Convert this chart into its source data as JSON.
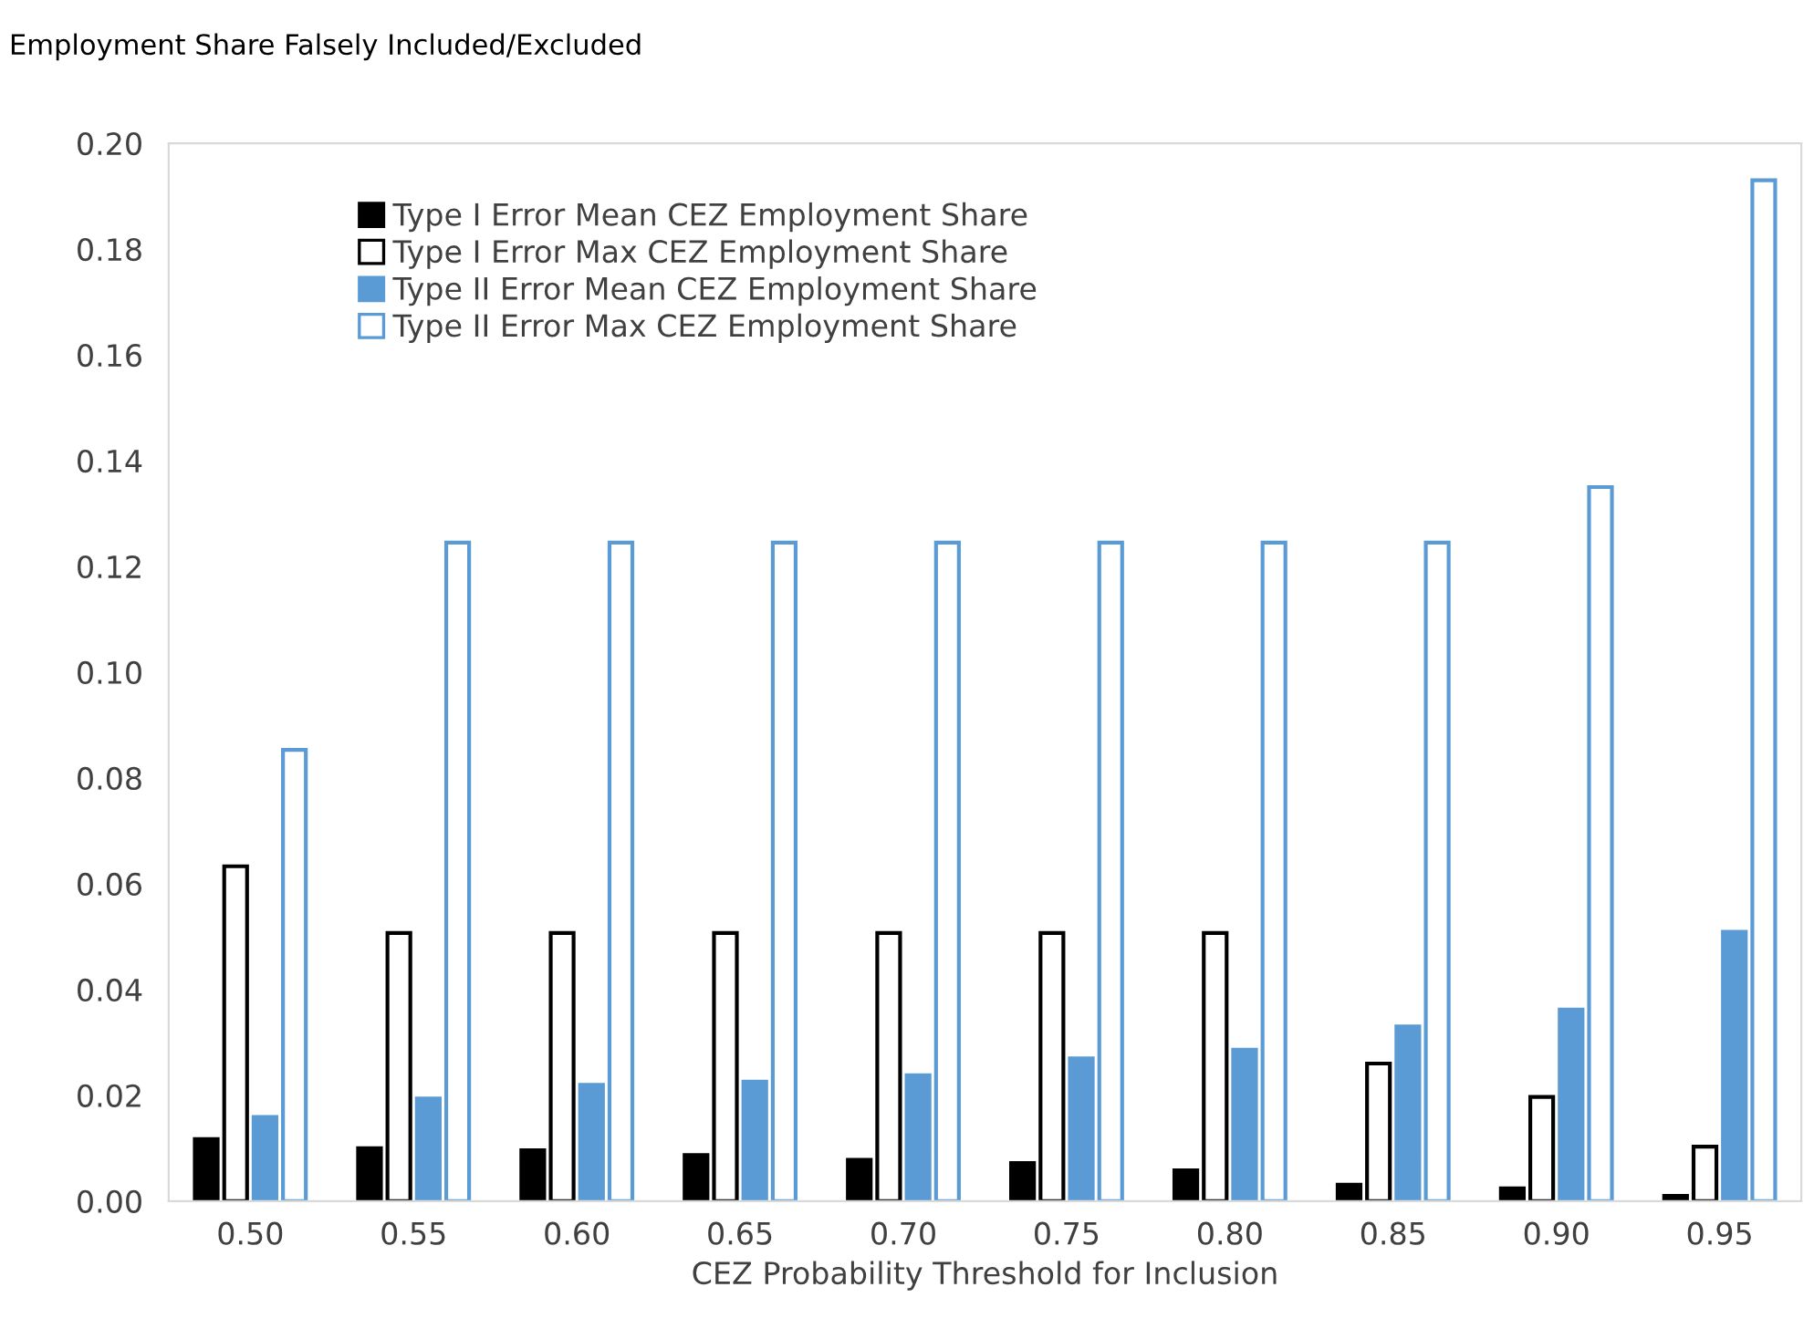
{
  "chart_data": {
    "type": "bar",
    "ylabel": "Employment Share Falsely Included/Excluded",
    "xlabel": "CEZ Probability Threshold for Inclusion",
    "categories": [
      "0.50",
      "0.55",
      "0.60",
      "0.65",
      "0.70",
      "0.75",
      "0.80",
      "0.85",
      "0.90",
      "0.95"
    ],
    "series": [
      {
        "name": "Type I Error Mean CEZ Employment Share",
        "color": "#000000",
        "values": [
          0.0117,
          0.01,
          0.0096,
          0.0087,
          0.0078,
          0.0072,
          0.0058,
          0.0031,
          0.0024,
          0.001
        ]
      },
      {
        "name": "Type I Error Max CEZ Employment Share",
        "color": "#000000",
        "values": [
          0.0633,
          0.0507,
          0.0507,
          0.0507,
          0.0507,
          0.0507,
          0.0507,
          0.026,
          0.0197,
          0.0103
        ]
      },
      {
        "name": "Type II Error Mean CEZ Employment Share",
        "color": "#5b9bd5",
        "values": [
          0.0159,
          0.0194,
          0.022,
          0.0226,
          0.0238,
          0.027,
          0.0286,
          0.033,
          0.0362,
          0.0509
        ]
      },
      {
        "name": "Type II Error Max CEZ Employment Share",
        "color": "#5b9bd5",
        "values": [
          0.0853,
          0.1245,
          0.1245,
          0.1245,
          0.1245,
          0.1245,
          0.1245,
          0.1245,
          0.135,
          0.193
        ]
      }
    ],
    "ylim": [
      0,
      0.2
    ],
    "yticks": [
      {
        "value": 0,
        "label": "0.00"
      },
      {
        "value": 0.02,
        "label": "0.02"
      },
      {
        "value": 0.04,
        "label": "0.04"
      },
      {
        "value": 0.06,
        "label": "0.06"
      },
      {
        "value": 0.08,
        "label": "0.08"
      },
      {
        "value": 0.1,
        "label": "0.10"
      },
      {
        "value": 0.12,
        "label": "0.12"
      },
      {
        "value": 0.14,
        "label": "0.14"
      },
      {
        "value": 0.16,
        "label": "0.16"
      },
      {
        "value": 0.18,
        "label": "0.18"
      },
      {
        "value": 0.2,
        "label": "0.20"
      }
    ],
    "grid": false,
    "legend": "top left"
  }
}
